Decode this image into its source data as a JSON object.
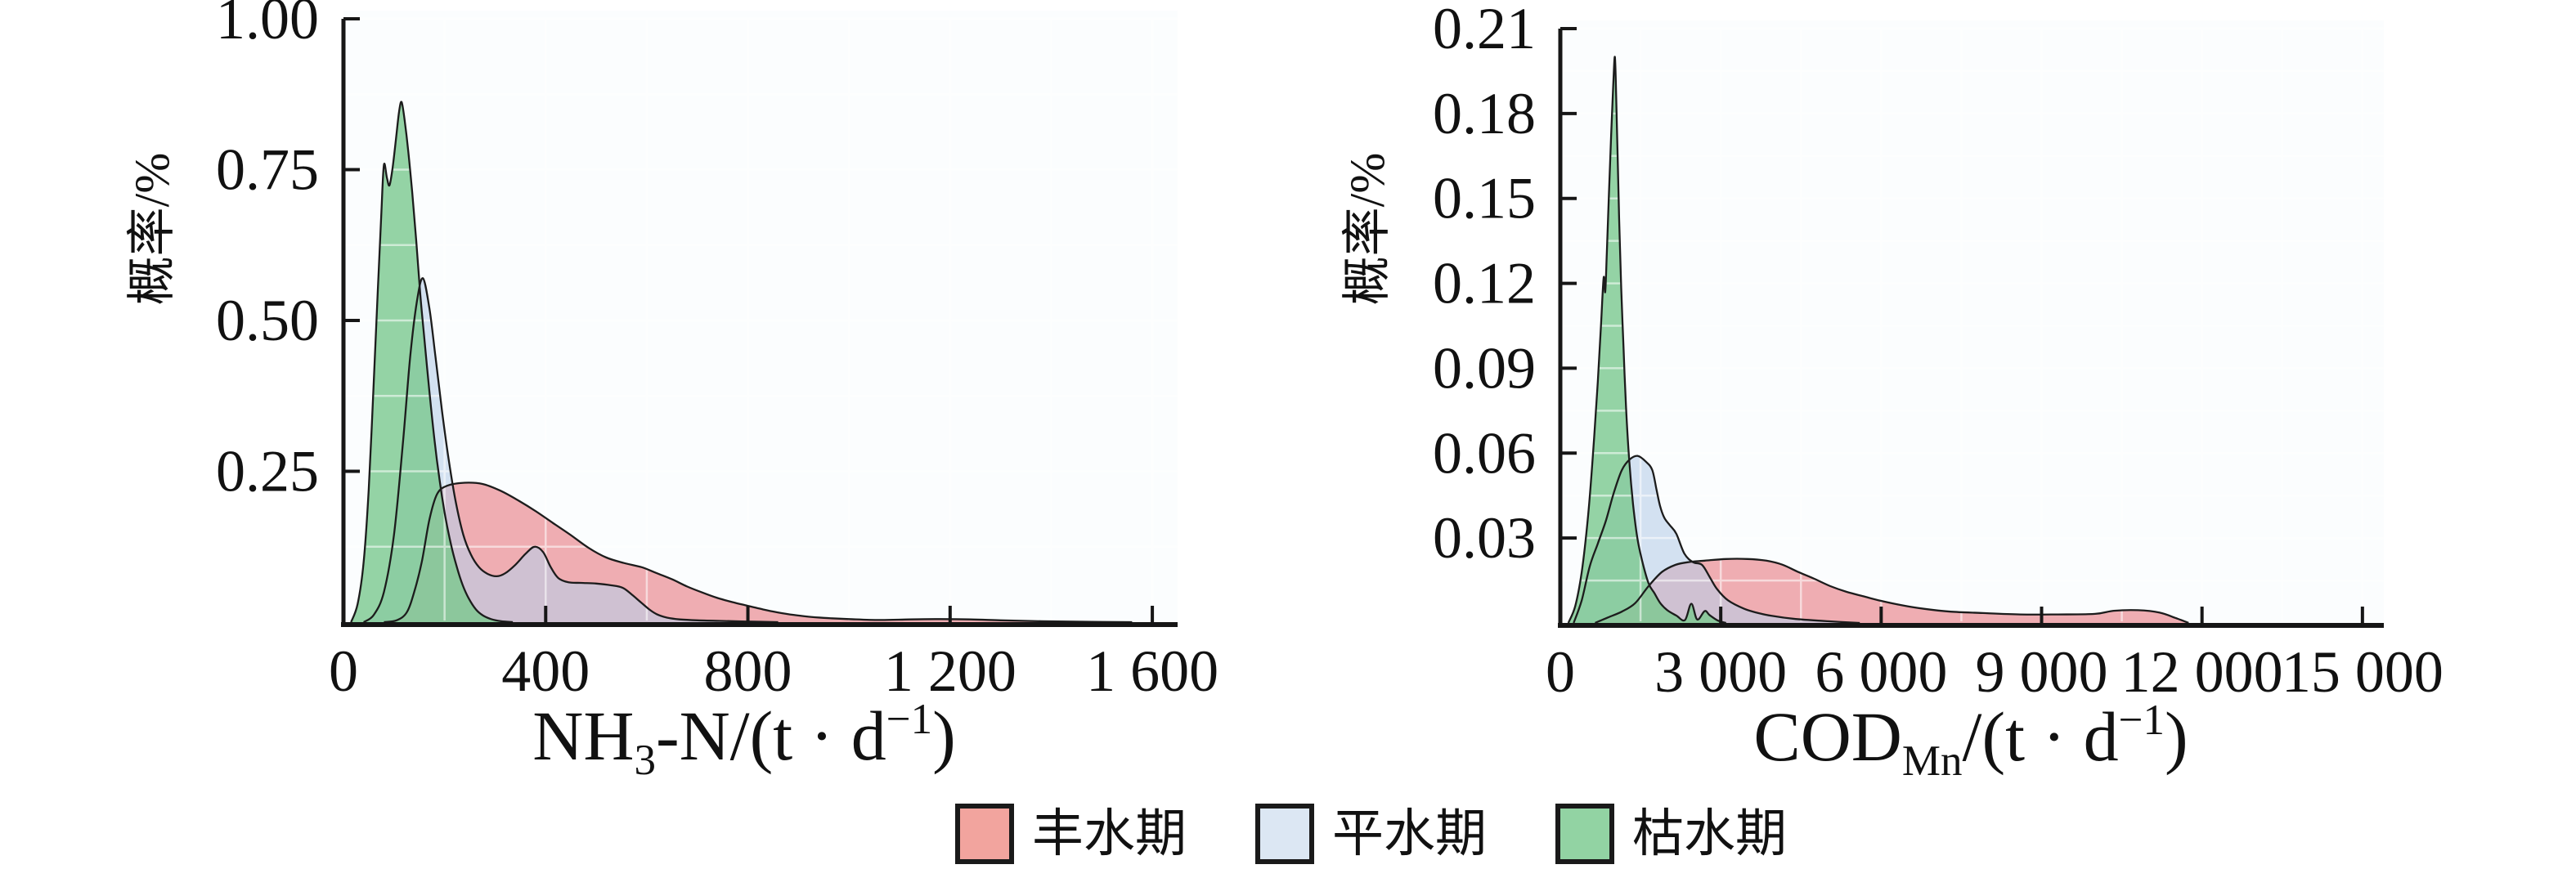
{
  "figure": {
    "background": "#ffffff",
    "plot_background": "#fbfdfe",
    "grid_color": "#ffffff",
    "axis_color": "#161616",
    "curve_stroke": "#1c1c1c",
    "text_color": "#111111"
  },
  "legend": {
    "items": [
      {
        "label": "丰水期",
        "color": "#F2A49E"
      },
      {
        "label": "平水期",
        "color": "#DCE7F3"
      },
      {
        "label": "枯水期",
        "color": "#92D3A3"
      }
    ]
  },
  "chart_data": [
    {
      "type": "area",
      "name": "nh3n-density",
      "xlabel_text": "NH3-N/(t·d−1)",
      "xlabel_parts": [
        {
          "t": "NH"
        },
        {
          "t": "3",
          "v": "sub"
        },
        {
          "t": "-N/(t · d"
        },
        {
          "t": "−1",
          "v": "sup"
        },
        {
          "t": ")"
        }
      ],
      "ylabel": "概率/%",
      "xlim": [
        0,
        1600
      ],
      "ylim": [
        0,
        1.0
      ],
      "grid": "on",
      "xticks": [
        0,
        400,
        800,
        1200,
        1600
      ],
      "xtick_labels": [
        "0",
        "400",
        "800",
        "1 200",
        "1 600"
      ],
      "yticks": [
        0.25,
        0.5,
        0.75,
        1.0
      ],
      "ytick_labels": [
        "0.25",
        "0.50",
        "0.75",
        "1.00"
      ],
      "series": [
        {
          "key": "wet-season",
          "name": "丰水期",
          "fill": "#e4646b",
          "fill_opacity": 0.52,
          "points": [
            [
              80,
              0
            ],
            [
              105,
              0.003
            ],
            [
              125,
              0.016
            ],
            [
              140,
              0.05
            ],
            [
              155,
              0.1
            ],
            [
              170,
              0.17
            ],
            [
              185,
              0.212
            ],
            [
              205,
              0.226
            ],
            [
              240,
              0.231
            ],
            [
              275,
              0.229
            ],
            [
              310,
              0.218
            ],
            [
              345,
              0.202
            ],
            [
              380,
              0.184
            ],
            [
              415,
              0.164
            ],
            [
              450,
              0.144
            ],
            [
              485,
              0.123
            ],
            [
              520,
              0.107
            ],
            [
              555,
              0.098
            ],
            [
              590,
              0.091
            ],
            [
              620,
              0.081
            ],
            [
              650,
              0.071
            ],
            [
              680,
              0.059
            ],
            [
              710,
              0.049
            ],
            [
              740,
              0.04
            ],
            [
              770,
              0.033
            ],
            [
              800,
              0.027
            ],
            [
              830,
              0.021
            ],
            [
              860,
              0.016
            ],
            [
              890,
              0.012
            ],
            [
              920,
              0.009
            ],
            [
              950,
              0.007
            ],
            [
              1000,
              0.005
            ],
            [
              1060,
              0.0035
            ],
            [
              1120,
              0.0045
            ],
            [
              1180,
              0.005
            ],
            [
              1240,
              0.0045
            ],
            [
              1300,
              0.003
            ],
            [
              1380,
              0.0015
            ],
            [
              1480,
              0.0005
            ],
            [
              1560,
              0
            ]
          ]
        },
        {
          "key": "normal-season",
          "name": "平水期",
          "fill": "#b9cfe8",
          "fill_opacity": 0.6,
          "points": [
            [
              40,
              0
            ],
            [
              60,
              0.012
            ],
            [
              80,
              0.05
            ],
            [
              100,
              0.145
            ],
            [
              118,
              0.3
            ],
            [
              132,
              0.44
            ],
            [
              145,
              0.53
            ],
            [
              157,
              0.57
            ],
            [
              170,
              0.52
            ],
            [
              182,
              0.44
            ],
            [
              195,
              0.35
            ],
            [
              208,
              0.27
            ],
            [
              222,
              0.2
            ],
            [
              237,
              0.145
            ],
            [
              252,
              0.112
            ],
            [
              268,
              0.091
            ],
            [
              285,
              0.08
            ],
            [
              303,
              0.076
            ],
            [
              320,
              0.081
            ],
            [
              340,
              0.095
            ],
            [
              360,
              0.113
            ],
            [
              378,
              0.125
            ],
            [
              395,
              0.116
            ],
            [
              410,
              0.091
            ],
            [
              425,
              0.073
            ],
            [
              445,
              0.066
            ],
            [
              470,
              0.065
            ],
            [
              500,
              0.064
            ],
            [
              530,
              0.061
            ],
            [
              552,
              0.057
            ],
            [
              570,
              0.046
            ],
            [
              588,
              0.033
            ],
            [
              605,
              0.021
            ],
            [
              620,
              0.013
            ],
            [
              640,
              0.0075
            ],
            [
              665,
              0.0045
            ],
            [
              700,
              0.003
            ],
            [
              745,
              0.002
            ],
            [
              800,
              0.001
            ],
            [
              860,
              0
            ]
          ]
        },
        {
          "key": "dry-season",
          "name": "枯水期",
          "fill": "#7ac88e",
          "fill_opacity": 0.8,
          "points": [
            [
              15,
              0
            ],
            [
              28,
              0.03
            ],
            [
              40,
              0.1
            ],
            [
              50,
              0.22
            ],
            [
              60,
              0.4
            ],
            [
              68,
              0.55
            ],
            [
              75,
              0.68
            ],
            [
              80,
              0.758
            ],
            [
              86,
              0.736
            ],
            [
              91,
              0.724
            ],
            [
              97,
              0.752
            ],
            [
              104,
              0.802
            ],
            [
              110,
              0.846
            ],
            [
              115,
              0.862
            ],
            [
              121,
              0.832
            ],
            [
              128,
              0.782
            ],
            [
              136,
              0.712
            ],
            [
              144,
              0.632
            ],
            [
              152,
              0.542
            ],
            [
              160,
              0.47
            ],
            [
              170,
              0.382
            ],
            [
              180,
              0.302
            ],
            [
              190,
              0.236
            ],
            [
              200,
              0.182
            ],
            [
              212,
              0.131
            ],
            [
              224,
              0.092
            ],
            [
              236,
              0.061
            ],
            [
              248,
              0.039
            ],
            [
              262,
              0.021
            ],
            [
              276,
              0.011
            ],
            [
              292,
              0.005
            ],
            [
              312,
              0.0015
            ],
            [
              335,
              0
            ]
          ]
        }
      ]
    },
    {
      "type": "area",
      "name": "codmn-density",
      "xlabel_text": "CODMn/(t·d−1)",
      "xlabel_parts": [
        {
          "t": "COD"
        },
        {
          "t": "Mn",
          "v": "sub"
        },
        {
          "t": "/(t · d"
        },
        {
          "t": "−1",
          "v": "sup"
        },
        {
          "t": ")"
        }
      ],
      "ylabel": "概率/%",
      "xlim": [
        0,
        15000
      ],
      "ylim": [
        0,
        0.21
      ],
      "grid": "on",
      "xticks": [
        0,
        3000,
        6000,
        9000,
        12000,
        15000
      ],
      "xtick_labels": [
        "0",
        "3 000",
        "6 000",
        "9 000",
        "12 000",
        "15 000"
      ],
      "yticks": [
        0.03,
        0.06,
        0.09,
        0.12,
        0.15,
        0.18,
        0.21
      ],
      "ytick_labels": [
        "0.03",
        "0.06",
        "0.09",
        "0.12",
        "0.15",
        "0.18",
        "0.21"
      ],
      "series": [
        {
          "key": "wet-season",
          "name": "丰水期",
          "fill": "#e4646b",
          "fill_opacity": 0.52,
          "points": [
            [
              650,
              0
            ],
            [
              900,
              0.002
            ],
            [
              1150,
              0.004
            ],
            [
              1400,
              0.007
            ],
            [
              1650,
              0.013
            ],
            [
              1900,
              0.018
            ],
            [
              2150,
              0.0205
            ],
            [
              2400,
              0.0215
            ],
            [
              2700,
              0.022
            ],
            [
              3100,
              0.0226
            ],
            [
              3500,
              0.0226
            ],
            [
              3850,
              0.022
            ],
            [
              4150,
              0.0206
            ],
            [
              4450,
              0.018
            ],
            [
              4750,
              0.0156
            ],
            [
              5050,
              0.013
            ],
            [
              5350,
              0.011
            ],
            [
              5650,
              0.0095
            ],
            [
              6000,
              0.0078
            ],
            [
              6400,
              0.0062
            ],
            [
              6800,
              0.005
            ],
            [
              7300,
              0.004
            ],
            [
              7900,
              0.0035
            ],
            [
              8600,
              0.003
            ],
            [
              9300,
              0.003
            ],
            [
              10000,
              0.0032
            ],
            [
              10350,
              0.0043
            ],
            [
              10800,
              0.0045
            ],
            [
              11200,
              0.0037
            ],
            [
              11500,
              0.0018
            ],
            [
              11750,
              0
            ]
          ]
        },
        {
          "key": "normal-season",
          "name": "平水期",
          "fill": "#b9cfe8",
          "fill_opacity": 0.6,
          "points": [
            [
              250,
              0
            ],
            [
              400,
              0.008
            ],
            [
              550,
              0.02
            ],
            [
              700,
              0.028
            ],
            [
              850,
              0.036
            ],
            [
              1000,
              0.046
            ],
            [
              1150,
              0.054
            ],
            [
              1300,
              0.0578
            ],
            [
              1450,
              0.059
            ],
            [
              1600,
              0.057
            ],
            [
              1720,
              0.054
            ],
            [
              1800,
              0.047
            ],
            [
              1870,
              0.041
            ],
            [
              1950,
              0.037
            ],
            [
              2050,
              0.0345
            ],
            [
              2170,
              0.0315
            ],
            [
              2320,
              0.0245
            ],
            [
              2480,
              0.0215
            ],
            [
              2650,
              0.0205
            ],
            [
              2800,
              0.016
            ],
            [
              2930,
              0.012
            ],
            [
              3135,
              0.008
            ],
            [
              3440,
              0.005
            ],
            [
              3700,
              0.0035
            ],
            [
              3950,
              0.0025
            ],
            [
              4400,
              0.0014
            ],
            [
              5000,
              0.0006
            ],
            [
              5600,
              0
            ]
          ]
        },
        {
          "key": "dry-season",
          "name": "枯水期",
          "fill": "#7ac88e",
          "fill_opacity": 0.8,
          "points": [
            [
              150,
              0
            ],
            [
              280,
              0.006
            ],
            [
              400,
              0.018
            ],
            [
              520,
              0.038
            ],
            [
              620,
              0.062
            ],
            [
              700,
              0.085
            ],
            [
              760,
              0.105
            ],
            [
              810,
              0.122
            ],
            [
              840,
              0.117
            ],
            [
              870,
              0.131
            ],
            [
              910,
              0.152
            ],
            [
              950,
              0.172
            ],
            [
              990,
              0.19
            ],
            [
              1020,
              0.2
            ],
            [
              1045,
              0.186
            ],
            [
              1070,
              0.166
            ],
            [
              1100,
              0.143
            ],
            [
              1140,
              0.118
            ],
            [
              1180,
              0.098
            ],
            [
              1230,
              0.076
            ],
            [
              1290,
              0.057
            ],
            [
              1360,
              0.042
            ],
            [
              1440,
              0.03
            ],
            [
              1530,
              0.022
            ],
            [
              1650,
              0.014
            ],
            [
              1760,
              0.0105
            ],
            [
              1870,
              0.007
            ],
            [
              2000,
              0.0045
            ],
            [
              2170,
              0.0026
            ],
            [
              2330,
              0.001
            ],
            [
              2450,
              0.0068
            ],
            [
              2560,
              0.0012
            ],
            [
              2700,
              0.0042
            ],
            [
              2790,
              0.0028
            ],
            [
              2950,
              0.0008
            ],
            [
              3100,
              0
            ]
          ]
        }
      ]
    }
  ]
}
